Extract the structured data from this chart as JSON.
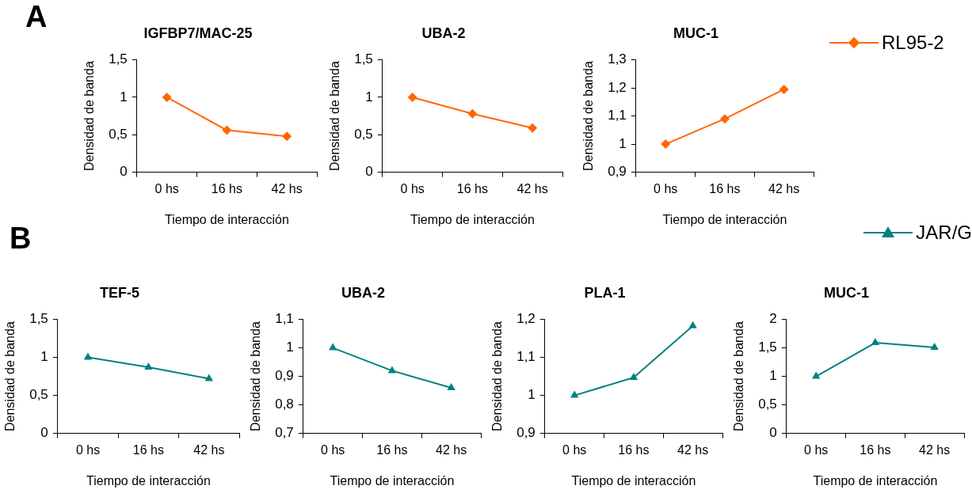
{
  "chart_data": [
    {
      "type": "line",
      "title": "IGFBP7/MAC-25",
      "xlabel": "Tiempo de interacción",
      "ylabel": "Densidad de banda",
      "annotations": [
        "A"
      ],
      "categories": [
        "0 hs",
        "16 hs",
        "42 hs"
      ],
      "marker": "diamond",
      "series": [
        {
          "color": "#ff6600",
          "values": [
            1,
            0.56,
            0.48
          ]
        }
      ],
      "ylim": [
        0,
        1.5
      ],
      "yticks": [
        0,
        {
          "value": 0.5,
          "label": "0,5"
        },
        1,
        {
          "value": 1.5,
          "label": "1,5"
        }
      ],
      "grid": false
    },
    {
      "type": "line",
      "title": "UBA-2",
      "xlabel": "Tiempo de interacción",
      "ylabel": "Densidad de banda",
      "categories": [
        "0 hs",
        "16 hs",
        "42 hs"
      ],
      "marker": "diamond",
      "series": [
        {
          "color": "#ff6600",
          "values": [
            1,
            0.78,
            0.59
          ]
        }
      ],
      "ylim": [
        0,
        1.5
      ],
      "yticks": [
        0,
        {
          "value": 0.5,
          "label": "0,5"
        },
        1,
        {
          "value": 1.5,
          "label": "1,5"
        }
      ],
      "grid": false
    },
    {
      "type": "line",
      "title": "MUC-1",
      "xlabel": "Tiempo de interacción",
      "ylabel": "Densidad de banda",
      "categories": [
        "0 hs",
        "16 hs",
        "42 hs"
      ],
      "marker": "diamond",
      "legend": "right",
      "series": [
        {
          "name": "RL95-2",
          "color": "#ff6600",
          "values": [
            1,
            1.09,
            1.195
          ]
        }
      ],
      "ylim": [
        0.9,
        1.3
      ],
      "yticks": [
        {
          "value": 0.9,
          "label": "0,9"
        },
        1,
        {
          "value": 1.1,
          "label": "1,1"
        },
        {
          "value": 1.2,
          "label": "1,2"
        },
        {
          "value": 1.3,
          "label": "1,3"
        }
      ],
      "grid": false
    },
    {
      "type": "line",
      "title": "TEF-5",
      "xlabel": "Tiempo de interacción",
      "ylabel": "Densidad de banda",
      "annotations": [
        "B"
      ],
      "categories": [
        "0 hs",
        "16 hs",
        "42 hs"
      ],
      "marker": "triangle",
      "series": [
        {
          "color": "#008080",
          "values": [
            1,
            0.87,
            0.72
          ]
        }
      ],
      "ylim": [
        0,
        1.5
      ],
      "yticks": [
        0,
        {
          "value": 0.5,
          "label": "0,5"
        },
        1,
        {
          "value": 1.5,
          "label": "1,5"
        }
      ],
      "grid": false
    },
    {
      "type": "line",
      "title": "UBA-2",
      "xlabel": "Tiempo de interacción",
      "ylabel": "Densidad de banda",
      "categories": [
        "0 hs",
        "16 hs",
        "42 hs"
      ],
      "marker": "triangle",
      "series": [
        {
          "color": "#008080",
          "values": [
            1,
            0.92,
            0.86
          ]
        }
      ],
      "ylim": [
        0.7,
        1.1
      ],
      "yticks": [
        {
          "value": 0.7,
          "label": "0,7"
        },
        {
          "value": 0.8,
          "label": "0,8"
        },
        {
          "value": 0.9,
          "label": "0,9"
        },
        1,
        {
          "value": 1.1,
          "label": "1,1"
        }
      ],
      "grid": false
    },
    {
      "type": "line",
      "title": "PLA-1",
      "xlabel": "Tiempo de interacción",
      "ylabel": "Densidad de banda",
      "categories": [
        "0 hs",
        "16 hs",
        "42 hs"
      ],
      "marker": "triangle",
      "series": [
        {
          "color": "#008080",
          "values": [
            1,
            1.047,
            1.183
          ]
        }
      ],
      "ylim": [
        0.9,
        1.2
      ],
      "yticks": [
        {
          "value": 0.9,
          "label": "0,9"
        },
        1,
        {
          "value": 1.1,
          "label": "1,1"
        },
        {
          "value": 1.2,
          "label": "1,2"
        }
      ],
      "grid": false
    },
    {
      "type": "line",
      "title": "MUC-1",
      "xlabel": "Tiempo de interacción",
      "ylabel": "Densidad de banda",
      "categories": [
        "0 hs",
        "16 hs",
        "42 hs"
      ],
      "marker": "triangle",
      "legend": "top right",
      "series": [
        {
          "name": "JAR/G",
          "color": "#008080",
          "values": [
            1,
            1.59,
            1.51
          ]
        }
      ],
      "ylim": [
        0,
        2
      ],
      "yticks": [
        0,
        {
          "value": 0.5,
          "label": "0,5"
        },
        1,
        {
          "value": 1.5,
          "label": "1,5"
        },
        2
      ],
      "grid": false
    }
  ]
}
